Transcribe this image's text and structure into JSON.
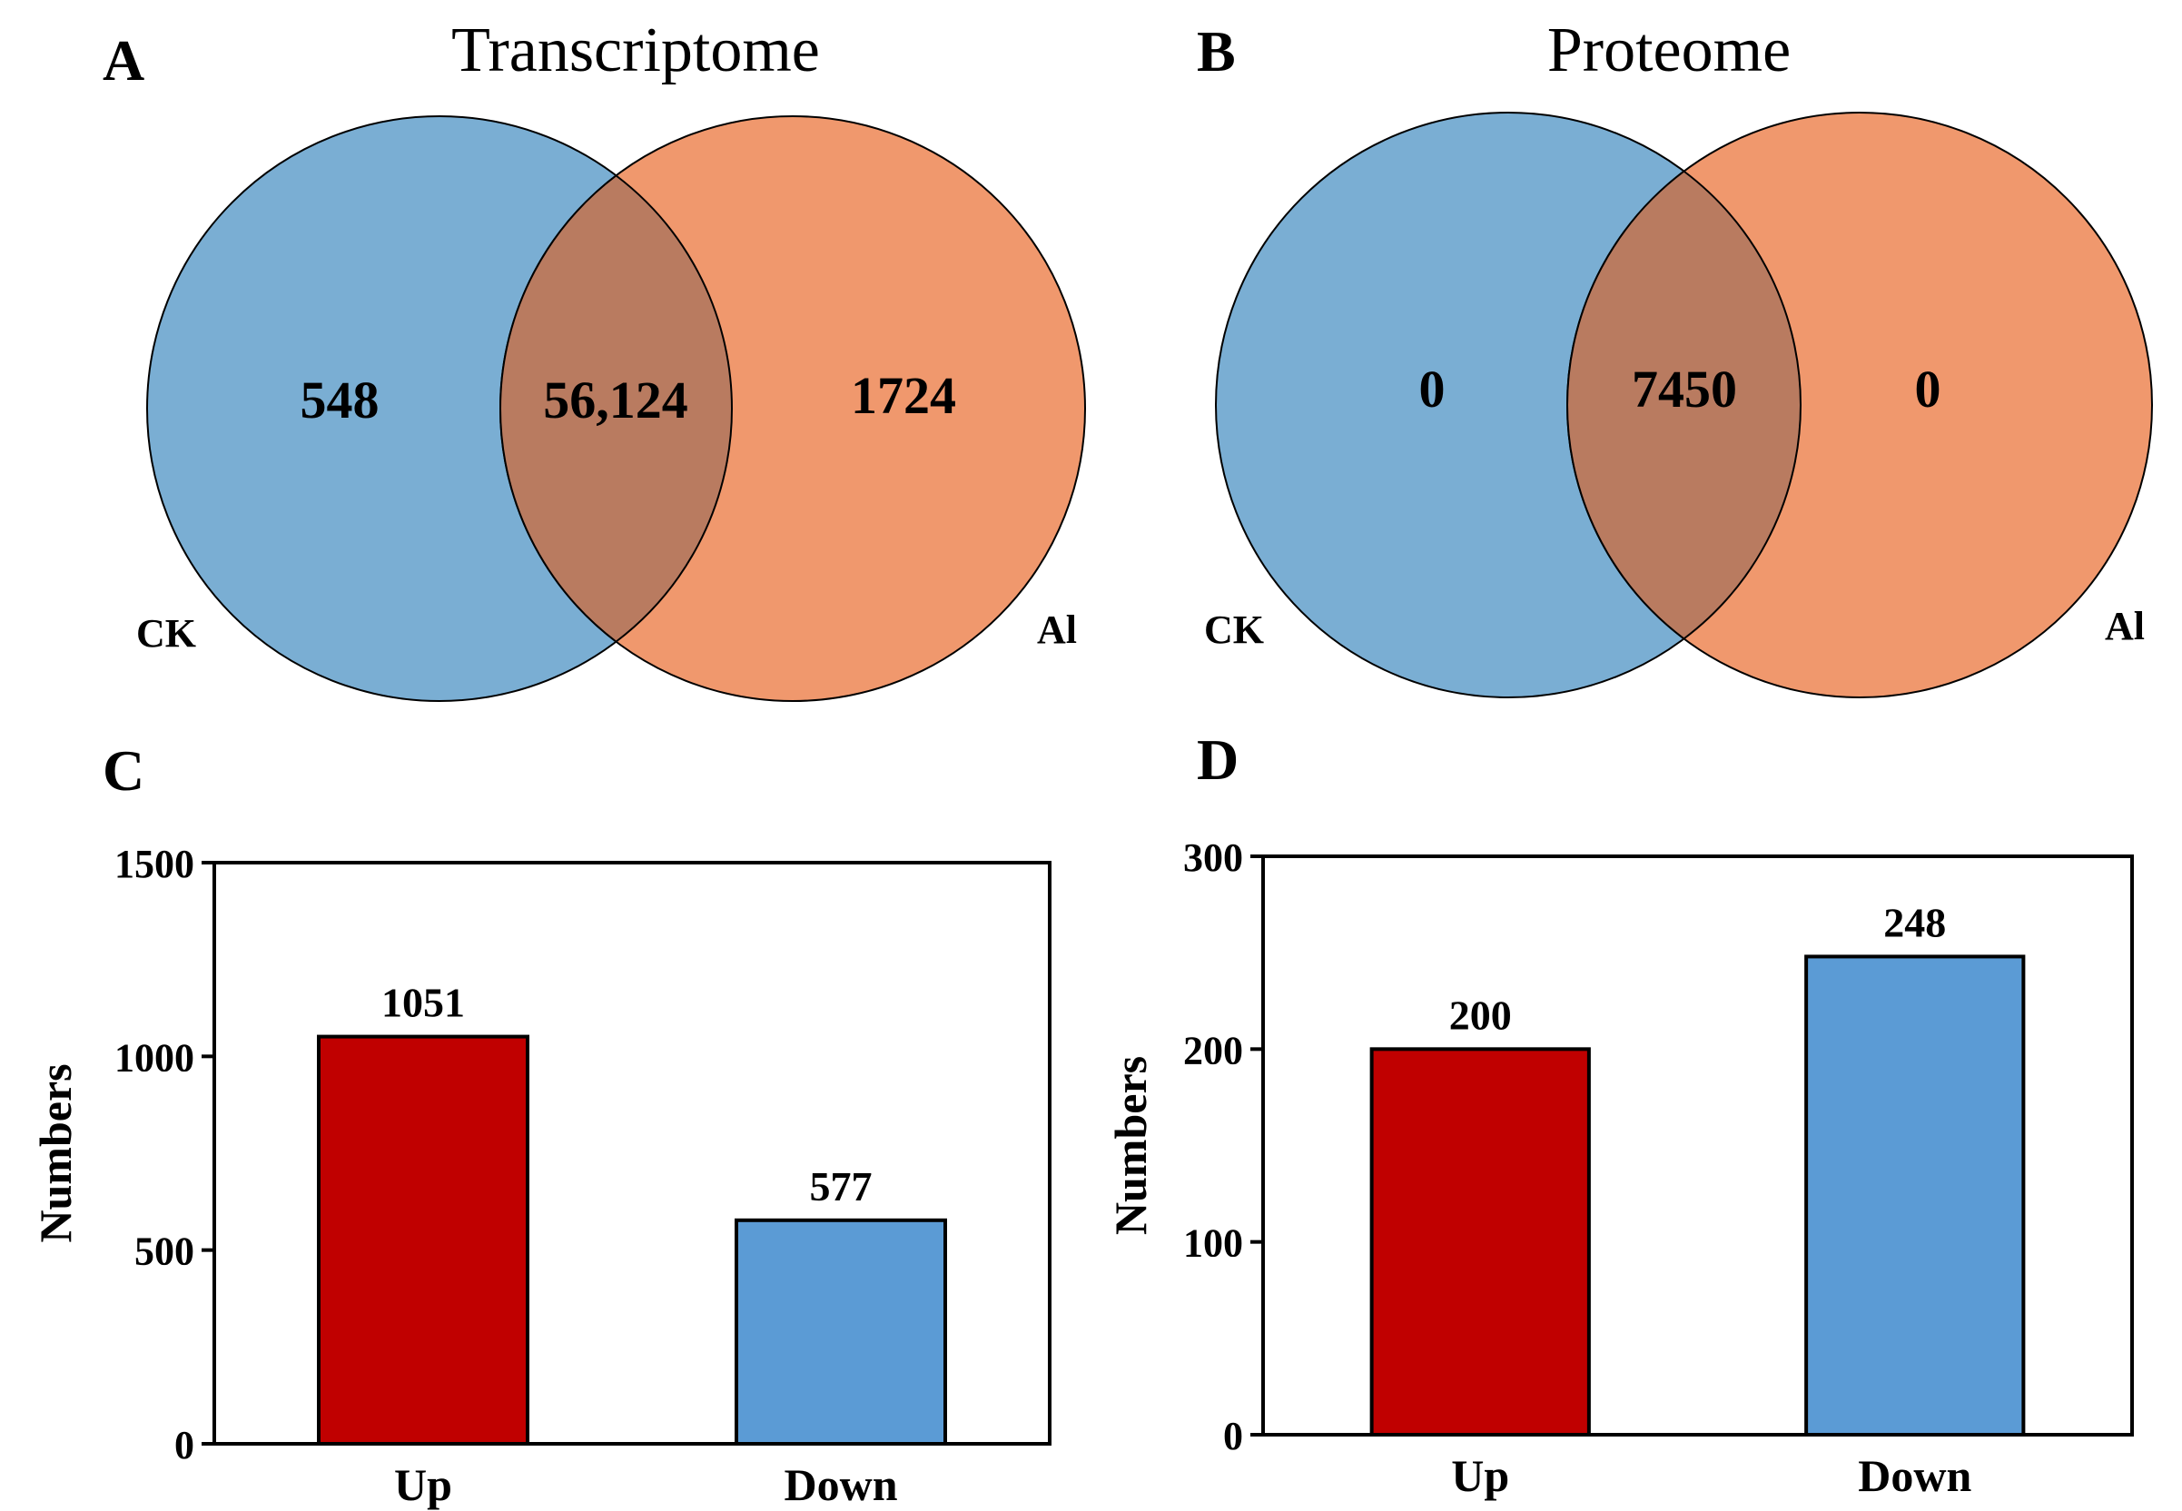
{
  "colors": {
    "ck": "#7aaed3",
    "al": "#f0986d",
    "overlap": "#b97b60",
    "up_bar": "#c00000",
    "down_bar": "#5b9bd5",
    "stroke": "#000000"
  },
  "chart_data": [
    {
      "panel": "A",
      "type": "venn",
      "title": "Transcriptome",
      "sets": [
        "CK",
        "Al"
      ],
      "counts": {
        "ck_only": "548",
        "overlap": "56,124",
        "al_only": "1724"
      }
    },
    {
      "panel": "B",
      "type": "venn",
      "title": "Proteome",
      "sets": [
        "CK",
        "Al"
      ],
      "counts": {
        "ck_only": "0",
        "overlap": "7450",
        "al_only": "0"
      }
    },
    {
      "panel": "C",
      "type": "bar",
      "title": "",
      "categories": [
        "Up",
        "Down"
      ],
      "values": [
        1051,
        577
      ],
      "ylabel": "Numbers",
      "ylim": [
        0,
        1500
      ],
      "yticks": [
        0,
        500,
        1000,
        1500
      ]
    },
    {
      "panel": "D",
      "type": "bar",
      "title": "",
      "categories": [
        "Up",
        "Down"
      ],
      "values": [
        200,
        248
      ],
      "ylabel": "Numbers",
      "ylim": [
        0,
        300
      ],
      "yticks": [
        0,
        100,
        200,
        300
      ]
    }
  ]
}
